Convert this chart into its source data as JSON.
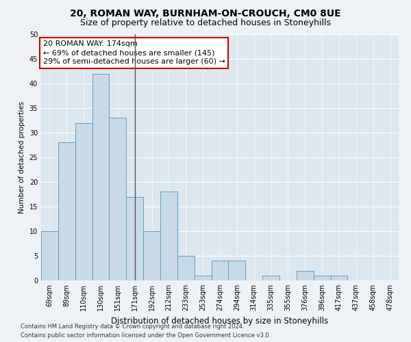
{
  "title1": "20, ROMAN WAY, BURNHAM-ON-CROUCH, CM0 8UE",
  "title2": "Size of property relative to detached houses in Stoneyhills",
  "xlabel": "Distribution of detached houses by size in Stoneyhills",
  "ylabel": "Number of detached properties",
  "categories": [
    "69sqm",
    "89sqm",
    "110sqm",
    "130sqm",
    "151sqm",
    "171sqm",
    "192sqm",
    "212sqm",
    "233sqm",
    "253sqm",
    "274sqm",
    "294sqm",
    "314sqm",
    "335sqm",
    "355sqm",
    "376sqm",
    "396sqm",
    "417sqm",
    "437sqm",
    "458sqm",
    "478sqm"
  ],
  "values": [
    10,
    28,
    32,
    42,
    33,
    17,
    10,
    18,
    5,
    1,
    4,
    4,
    0,
    1,
    0,
    2,
    1,
    1,
    0,
    0,
    0
  ],
  "bar_color": "#c8d9e8",
  "bar_edge_color": "#5e9ec0",
  "highlight_index": 5,
  "highlight_line_color": "#555555",
  "annotation_text": "20 ROMAN WAY: 174sqm\n← 69% of detached houses are smaller (145)\n29% of semi-detached houses are larger (60) →",
  "annotation_box_color": "#ffffff",
  "annotation_box_edge": "#cc0000",
  "ylim": [
    0,
    50
  ],
  "yticks": [
    0,
    5,
    10,
    15,
    20,
    25,
    30,
    35,
    40,
    45,
    50
  ],
  "footer1": "Contains HM Land Registry data © Crown copyright and database right 2024.",
  "footer2": "Contains public sector information licensed under the Open Government Licence v3.0.",
  "bg_color": "#eef2f7",
  "plot_bg_color": "#dde7f0",
  "grid_color": "#ffffff",
  "title1_fontsize": 10,
  "title2_fontsize": 9,
  "tick_fontsize": 7,
  "ylabel_fontsize": 7.5,
  "xlabel_fontsize": 8.5,
  "footer_fontsize": 6.0,
  "ann_fontsize": 8
}
